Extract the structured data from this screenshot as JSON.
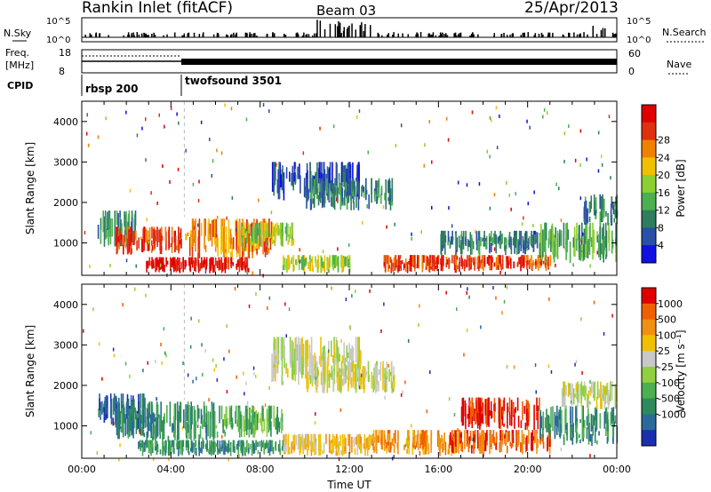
{
  "header": {
    "station": "Rankin Inlet (fitACF)",
    "beam": "Beam 03",
    "date": "25/Apr/2013"
  },
  "noise_panel": {
    "left_label": "N.Sky",
    "left_ticks": [
      "10^5",
      "10^0"
    ],
    "right_label": "N.Search",
    "right_ticks": [
      "10^5",
      "10^0"
    ]
  },
  "freq_panel": {
    "left_label_1": "Freq.",
    "left_label_2": "[MHz]",
    "left_ticks": [
      "18",
      "8"
    ],
    "right_label": "Nave",
    "right_ticks": [
      "60",
      "0"
    ]
  },
  "cpid": {
    "label": "CPID",
    "modes": [
      {
        "name": "rbsp 200",
        "start_hour": 0
      },
      {
        "name": "twofsound 3501",
        "start_hour": 4.6
      }
    ]
  },
  "chart_data": [
    {
      "type": "heatmap",
      "name": "power",
      "ylabel": "Slant Range [km]",
      "ylim": [
        200,
        4500
      ],
      "yticks": [
        "1000",
        "2000",
        "3000",
        "4000"
      ],
      "xlim_hours": [
        0,
        24
      ],
      "colorbar": {
        "label": "Power [dB]",
        "ticks": [
          "4",
          "8",
          "12",
          "16",
          "20",
          "24",
          "28"
        ],
        "colors": [
          "#1010e0",
          "#2a4fa8",
          "#2e7d5e",
          "#4caf50",
          "#8ccf30",
          "#f0c000",
          "#f08000",
          "#e03010",
          "#e00000"
        ]
      },
      "regions": [
        {
          "t0": 0.7,
          "t1": 2.4,
          "r0": 900,
          "r1": 1800,
          "level": 2
        },
        {
          "t0": 1.5,
          "t1": 4.5,
          "r0": 700,
          "r1": 1400,
          "level": 7
        },
        {
          "t0": 4.5,
          "t1": 8.5,
          "r0": 600,
          "r1": 1600,
          "level": 6
        },
        {
          "t0": 2.8,
          "t1": 7.5,
          "r0": 250,
          "r1": 650,
          "level": 8
        },
        {
          "t0": 7.0,
          "t1": 9.5,
          "r0": 900,
          "r1": 1500,
          "level": 4
        },
        {
          "t0": 8.5,
          "t1": 12.5,
          "r0": 2000,
          "r1": 3000,
          "level": 1
        },
        {
          "t0": 10.0,
          "t1": 14.0,
          "r0": 1800,
          "r1": 2600,
          "level": 2
        },
        {
          "t0": 9.0,
          "t1": 12.0,
          "r0": 250,
          "r1": 700,
          "level": 4
        },
        {
          "t0": 13.5,
          "t1": 17.0,
          "r0": 250,
          "r1": 700,
          "level": 7
        },
        {
          "t0": 17.0,
          "t1": 21.0,
          "r0": 300,
          "r1": 700,
          "level": 7
        },
        {
          "t0": 16.0,
          "t1": 20.5,
          "r0": 700,
          "r1": 1300,
          "level": 2
        },
        {
          "t0": 20.5,
          "t1": 24.0,
          "r0": 500,
          "r1": 1500,
          "level": 3
        },
        {
          "t0": 22.5,
          "t1": 24.0,
          "r0": 1400,
          "r1": 2200,
          "level": 2
        }
      ]
    },
    {
      "type": "heatmap",
      "name": "velocity",
      "xlabel": "Time UT",
      "ylabel": "Slant Range [km]",
      "ylim": [
        200,
        4500
      ],
      "yticks": [
        "1000",
        "2000",
        "3000",
        "4000"
      ],
      "xticks": [
        "00:00",
        "04:00",
        "08:00",
        "12:00",
        "16:00",
        "20:00",
        "00:00"
      ],
      "xlim_hours": [
        0,
        24
      ],
      "colorbar": {
        "label": "Velocity [m s⁻¹]",
        "ticks": [
          "1000",
          "500",
          "100",
          "25",
          "-25",
          "-100",
          "-500",
          "-1000"
        ],
        "colors": [
          "#1a2fb0",
          "#2a6a9a",
          "#2e8a5a",
          "#4caf50",
          "#90d040",
          "#c8c8c8",
          "#f0c000",
          "#f09010",
          "#f06000",
          "#e00000"
        ]
      },
      "regions": [
        {
          "t0": 0.7,
          "t1": 3.0,
          "r0": 900,
          "r1": 1800,
          "level": 1
        },
        {
          "t0": 1.5,
          "t1": 6.0,
          "r0": 600,
          "r1": 1600,
          "level": 2
        },
        {
          "t0": 6.0,
          "t1": 9.0,
          "r0": 700,
          "r1": 1500,
          "level": 3
        },
        {
          "t0": 2.5,
          "t1": 9.0,
          "r0": 250,
          "r1": 650,
          "level": 2
        },
        {
          "t0": 8.5,
          "t1": 12.5,
          "r0": 2000,
          "r1": 3200,
          "level": 5
        },
        {
          "t0": 10.0,
          "t1": 14.0,
          "r0": 1800,
          "r1": 2600,
          "level": 5
        },
        {
          "t0": 9.0,
          "t1": 13.0,
          "r0": 250,
          "r1": 800,
          "level": 6
        },
        {
          "t0": 13.0,
          "t1": 17.0,
          "r0": 250,
          "r1": 900,
          "level": 7
        },
        {
          "t0": 16.5,
          "t1": 21.0,
          "r0": 300,
          "r1": 900,
          "level": 8
        },
        {
          "t0": 17.0,
          "t1": 20.5,
          "r0": 900,
          "r1": 1700,
          "level": 9
        },
        {
          "t0": 20.5,
          "t1": 24.0,
          "r0": 500,
          "r1": 1500,
          "level": 2
        },
        {
          "t0": 21.5,
          "t1": 24.0,
          "r0": 1400,
          "r1": 2100,
          "level": 5
        }
      ]
    }
  ]
}
